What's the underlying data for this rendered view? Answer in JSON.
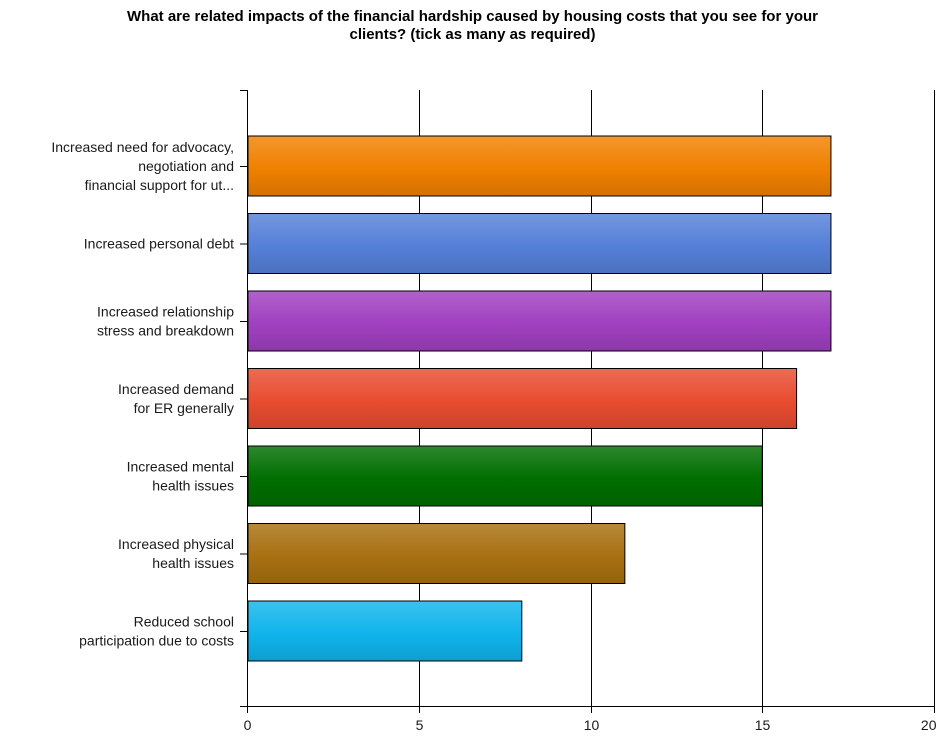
{
  "chart_data": {
    "type": "bar",
    "orientation": "horizontal",
    "title_lines": [
      "What are related impacts of the financial hardship caused by housing costs that you see for your",
      "clients? (tick as many as required)"
    ],
    "categories": [
      [
        "Increased need for advocacy,",
        "negotiation and",
        "financial support for ut..."
      ],
      [
        "Increased personal debt"
      ],
      [
        "Increased relationship",
        "stress and breakdown"
      ],
      [
        "Increased demand",
        "for ER generally"
      ],
      [
        "Increased mental",
        "health issues"
      ],
      [
        "Increased physical",
        "health issues"
      ],
      [
        "Reduced school",
        "participation due to costs"
      ]
    ],
    "values": [
      17,
      17,
      17,
      16,
      15,
      11,
      8
    ],
    "colors": [
      "#f08000",
      "#5580d8",
      "#a040c0",
      "#e84c30",
      "#006e00",
      "#a87010",
      "#10b4ec"
    ],
    "xlim": [
      0,
      20
    ],
    "xticks": [
      0,
      5,
      10,
      15,
      20
    ],
    "grid": true
  }
}
